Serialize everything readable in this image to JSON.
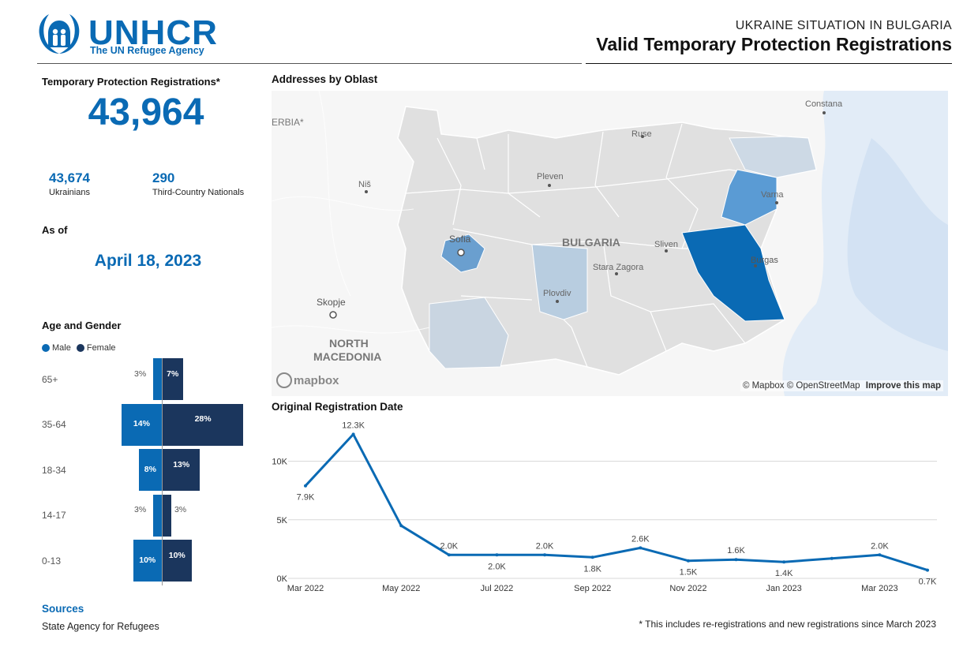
{
  "header": {
    "org_name": "UNHCR",
    "org_subtitle": "The UN Refugee Agency",
    "overline": "UKRAINE SITUATION IN BULGARIA",
    "title": "Valid Temporary Protection Registrations"
  },
  "summary": {
    "label": "Temporary Protection Registrations*",
    "total": "43,964",
    "ukrainians_value": "43,674",
    "ukrainians_label": "Ukrainians",
    "tcn_value": "290",
    "tcn_label": "Third-Country Nationals",
    "as_of_label": "As of",
    "as_of_date": "April 18, 2023"
  },
  "age_gender": {
    "title": "Age and Gender",
    "legend_male": "Male",
    "legend_female": "Female",
    "male_color": "#0a6ab4",
    "female_color": "#1b365d"
  },
  "map": {
    "title": "Addresses by Oblast",
    "country_label": "BULGARIA",
    "places": {
      "sofia": "Sofia",
      "varna": "Varna",
      "burgas": "Burgas",
      "plovdiv": "Plovdiv",
      "pleven": "Pleven",
      "ruse": "Ruse",
      "sliven": "Sliven",
      "stara_zagora": "Stara Zagora",
      "constana": "Constana",
      "nis": "Niš",
      "skopje": "Skopje",
      "serbia": "ERBIA*",
      "north_macedonia_1": "NORTH",
      "north_macedonia_2": "MACEDONIA"
    },
    "mapbox_logo": "mapbox",
    "attribution": "© Mapbox © OpenStreetMap",
    "improve": "Improve this map"
  },
  "line_section": {
    "title": "Original Registration Date"
  },
  "sources": {
    "title": "Sources",
    "text": "State Agency for Refugees"
  },
  "footnote": "* This includes re-registrations and new registrations since March 2023",
  "chart_data": [
    {
      "type": "bar",
      "title": "Age and Gender",
      "orientation": "horizontal-pyramid",
      "categories": [
        "65+",
        "35-64",
        "18-34",
        "14-17",
        "0-13"
      ],
      "series": [
        {
          "name": "Male",
          "values": [
            3,
            14,
            8,
            3,
            10
          ],
          "labels": [
            "3%",
            "14%",
            "8%",
            "3%",
            "10%"
          ],
          "color": "#0a6ab4"
        },
        {
          "name": "Female",
          "values": [
            7,
            28,
            13,
            3,
            10
          ],
          "labels": [
            "7%",
            "28%",
            "13%",
            "3%",
            "10%"
          ],
          "color": "#1b365d"
        }
      ],
      "legend_position": "top-left"
    },
    {
      "type": "line",
      "title": "Original Registration Date",
      "x": [
        "2022-03",
        "2022-04",
        "2022-05",
        "2022-06",
        "2022-07",
        "2022-08",
        "2022-09",
        "2022-10",
        "2022-11",
        "2022-12",
        "2023-01",
        "2023-02",
        "2023-03",
        "2023-04"
      ],
      "xticks": [
        "Mar 2022",
        "May 2022",
        "Jul 2022",
        "Sep 2022",
        "Nov 2022",
        "Jan 2023",
        "Mar 2023"
      ],
      "series": [
        {
          "values": [
            7900,
            12300,
            4500,
            2000,
            2000,
            2000,
            1800,
            2600,
            1500,
            1600,
            1400,
            1700,
            2000,
            700
          ],
          "labels": [
            "7.9K",
            "12.3K",
            "",
            "2.0K",
            "2.0K",
            "2.0K",
            "1.8K",
            "2.6K",
            "1.5K",
            "1.6K",
            "1.4K",
            "",
            "2.0K",
            "0.7K"
          ],
          "color": "#0a6ab4"
        }
      ],
      "yticks": [
        "0K",
        "5K",
        "10K"
      ],
      "ylim": [
        0,
        13000
      ],
      "grid": true
    }
  ]
}
